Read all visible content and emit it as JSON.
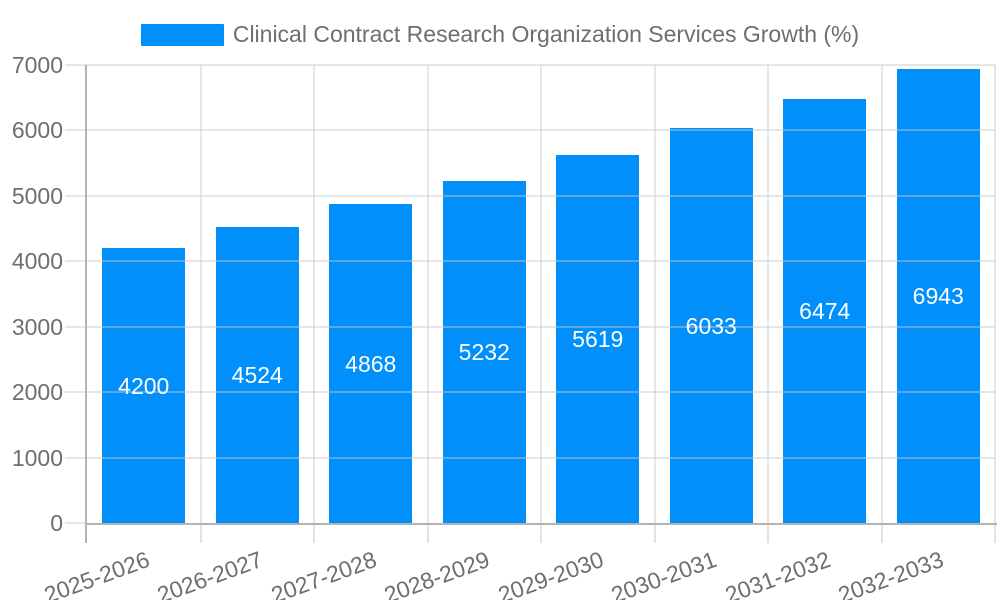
{
  "chart_data": {
    "type": "bar",
    "title": "Clinical Contract Research Organization Services Growth (%)",
    "categories": [
      "2025-2026",
      "2026-2027",
      "2027-2028",
      "2028-2029",
      "2029-2030",
      "2030-2031",
      "2031-2032",
      "2032-2033"
    ],
    "values": [
      4200,
      4524,
      4868,
      5232,
      5619,
      6033,
      6474,
      6943
    ],
    "series": [
      {
        "name": "Clinical Contract Research Organization Services Growth (%)",
        "values": [
          4200,
          4524,
          4868,
          5232,
          5619,
          6033,
          6474,
          6943
        ]
      }
    ],
    "xlabel": "",
    "ylabel": "",
    "ylim": [
      0,
      7000
    ],
    "yticks": [
      0,
      1000,
      2000,
      3000,
      4000,
      5000,
      6000,
      7000
    ],
    "grid": true,
    "legend_position": "top",
    "colors": {
      "bar": "#008FFB",
      "bar_label": "#FFFFFF",
      "axis_text": "#6E6E6E",
      "axis_line": "#B3B3B3",
      "gridline": "#E1E1E1"
    }
  }
}
